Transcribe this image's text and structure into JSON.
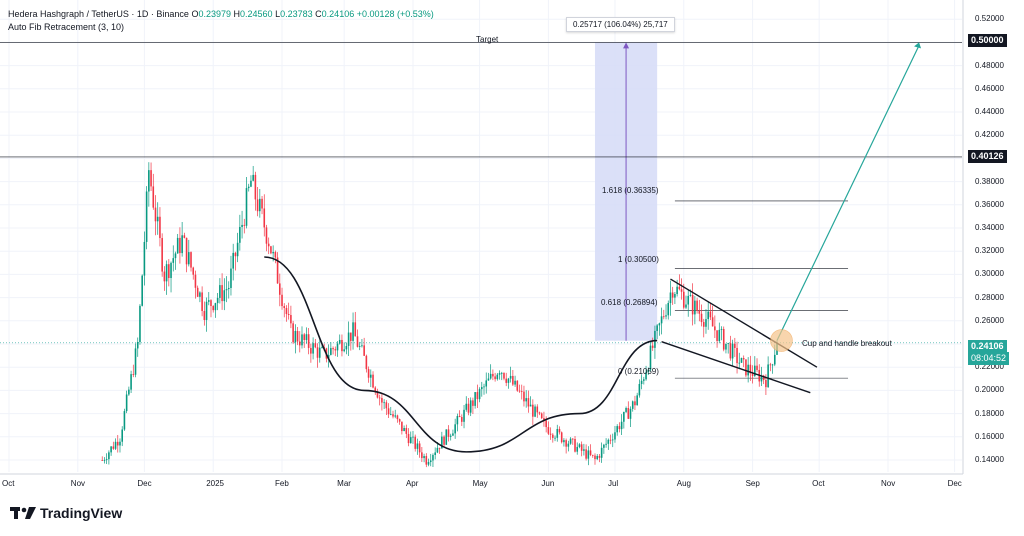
{
  "header": {
    "symbol": "Hedera Hashgraph / TetherUS · 1D · Binance",
    "o_label": "O",
    "o_value": "0.23979",
    "h_label": "H",
    "h_value": "0.24560",
    "l_label": "L",
    "l_value": "0.23783",
    "c_label": "C",
    "c_value": "0.24106",
    "change": "+0.00128 (+0.53%)",
    "indicator": "Auto Fib Retracement (3, 10)"
  },
  "annotations": {
    "measure": "0.25717 (106.04%) 25,717",
    "target": "Target",
    "fib_1618": "1.618 (0.36335)",
    "fib_1": "1 (0.30500)",
    "fib_0618": "0.618 (0.26894)",
    "fib_0": "0 (0.21059)",
    "breakout": "Cup and handle breakout"
  },
  "price_labels": {
    "target": "0.50000",
    "resistance": "0.40126",
    "current": "0.24106",
    "countdown": "08:04:52"
  },
  "brand": {
    "name": "TradingView"
  },
  "colors": {
    "up": "#089981",
    "down": "#f23645",
    "projection": "#26a69a",
    "measure_fill": "#d5daf7",
    "measure_line": "#7e57c2"
  },
  "chart_data": {
    "type": "candlestick",
    "title": "Hedera Hashgraph / TetherUS · 1D · Binance",
    "y_axis_ticks": [
      0.14,
      0.16,
      0.18,
      0.2,
      0.22,
      0.24,
      0.26,
      0.28,
      0.3,
      0.32,
      0.34,
      0.36,
      0.38,
      0.4,
      0.42,
      0.44,
      0.46,
      0.48,
      0.5,
      0.52
    ],
    "ylim": [
      0.13,
      0.53
    ],
    "x_axis_ticks": [
      "Oct",
      "Nov",
      "Dec",
      "2025",
      "Feb",
      "Mar",
      "Apr",
      "May",
      "Jun",
      "Jul",
      "Aug",
      "Sep",
      "Oct",
      "Nov",
      "Dec"
    ],
    "x_tick_dates": [
      "2024-10-01",
      "2024-11-01",
      "2024-12-01",
      "2025-01-01",
      "2025-02-01",
      "2025-03-01",
      "2025-04-01",
      "2025-05-01",
      "2025-06-01",
      "2025-07-01",
      "2025-08-01",
      "2025-09-01",
      "2025-10-01",
      "2025-11-01",
      "2025-12-01"
    ],
    "price_path": [
      {
        "date": "2024-11-12",
        "price": 0.14
      },
      {
        "date": "2024-11-20",
        "price": 0.16
      },
      {
        "date": "2024-11-28",
        "price": 0.24
      },
      {
        "date": "2024-12-03",
        "price": 0.39
      },
      {
        "date": "2024-12-10",
        "price": 0.3
      },
      {
        "date": "2024-12-18",
        "price": 0.33
      },
      {
        "date": "2024-12-28",
        "price": 0.27
      },
      {
        "date": "2025-01-08",
        "price": 0.29
      },
      {
        "date": "2025-01-18",
        "price": 0.38
      },
      {
        "date": "2025-01-26",
        "price": 0.33
      },
      {
        "date": "2025-02-05",
        "price": 0.25
      },
      {
        "date": "2025-02-20",
        "price": 0.23
      },
      {
        "date": "2025-03-05",
        "price": 0.25
      },
      {
        "date": "2025-03-18",
        "price": 0.19
      },
      {
        "date": "2025-04-07",
        "price": 0.14
      },
      {
        "date": "2025-04-20",
        "price": 0.17
      },
      {
        "date": "2025-05-10",
        "price": 0.22
      },
      {
        "date": "2025-05-30",
        "price": 0.17
      },
      {
        "date": "2025-06-22",
        "price": 0.14
      },
      {
        "date": "2025-07-10",
        "price": 0.19
      },
      {
        "date": "2025-07-27",
        "price": 0.29
      },
      {
        "date": "2025-08-12",
        "price": 0.26
      },
      {
        "date": "2025-08-28",
        "price": 0.22
      },
      {
        "date": "2025-09-07",
        "price": 0.21
      },
      {
        "date": "2025-09-12",
        "price": 0.24106
      }
    ],
    "levels": {
      "target": 0.5,
      "resistance": 0.40126,
      "fib_1618": 0.36335,
      "fib_1": 0.305,
      "fib_0618": 0.26894,
      "fib_0": 0.21059,
      "current": 0.24106
    },
    "measure": {
      "from": 0.24283,
      "to": 0.5,
      "change_pct": 106.04
    },
    "cup": [
      {
        "date": "2025-01-24",
        "price": 0.315
      },
      {
        "date": "2025-03-10",
        "price": 0.2
      },
      {
        "date": "2025-04-25",
        "price": 0.147
      },
      {
        "date": "2025-06-15",
        "price": 0.18
      },
      {
        "date": "2025-07-20",
        "price": 0.243
      }
    ],
    "handle_upper": [
      {
        "date": "2025-07-26",
        "price": 0.296
      },
      {
        "date": "2025-09-30",
        "price": 0.22
      }
    ],
    "handle_lower": [
      {
        "date": "2025-07-22",
        "price": 0.242
      },
      {
        "date": "2025-09-27",
        "price": 0.198
      }
    ],
    "projection": [
      {
        "date": "2025-09-12",
        "price": 0.243
      },
      {
        "date": "2025-11-15",
        "price": 0.5
      }
    ]
  }
}
